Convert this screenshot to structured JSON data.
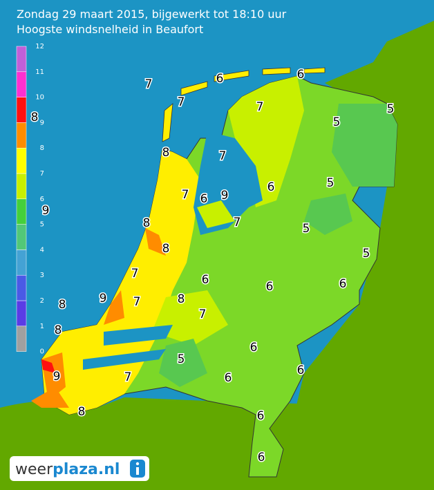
{
  "header": {
    "title": "Zondag 29 maart 2015, bijgewerkt tot 18:10 uur",
    "subtitle": "Hoogste windsnelheid in Beaufort"
  },
  "legend": {
    "ticks": [
      "0",
      "1",
      "2",
      "3",
      "4",
      "5",
      "6",
      "7",
      "8",
      "9",
      "10",
      "11",
      "12"
    ],
    "colors": [
      "#a0a0a0",
      "#5a3ce6",
      "#4a5ae6",
      "#44a2d4",
      "#52c878",
      "#44d03c",
      "#c8f000",
      "#ffff00",
      "#ff8c00",
      "#ff1010",
      "#ff30d0",
      "#c060d8"
    ]
  },
  "map": {
    "labels": [
      "7",
      "6",
      "6",
      "7",
      "7",
      "5",
      "5",
      "8",
      "7",
      "6",
      "5",
      "7",
      "6",
      "9",
      "7",
      "8",
      "5",
      "8",
      "5",
      "7",
      "6",
      "6",
      "6",
      "9",
      "7",
      "8",
      "8",
      "7",
      "8",
      "6",
      "5",
      "6",
      "9",
      "7",
      "6",
      "8",
      "6",
      "6",
      "8",
      "9"
    ]
  },
  "logo": {
    "part1": "weer",
    "part2": "plaza.nl"
  }
}
